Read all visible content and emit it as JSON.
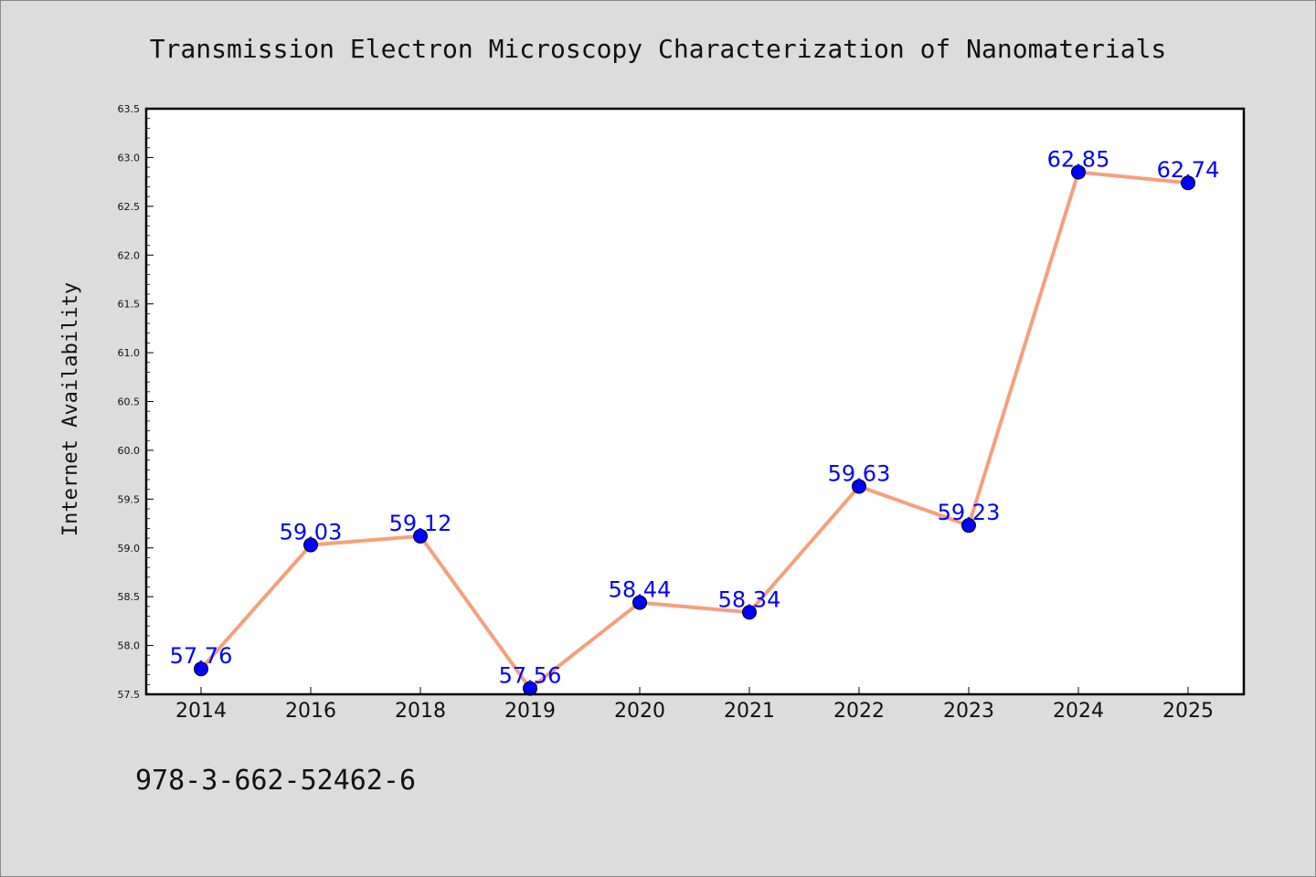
{
  "chart_data": {
    "type": "line",
    "title": "Transmission Electron Microscopy Characterization of Nanomaterials",
    "xlabel": "",
    "ylabel": "Internet Availability",
    "categories": [
      "2014",
      "2016",
      "2018",
      "2019",
      "2020",
      "2021",
      "2022",
      "2023",
      "2024",
      "2025"
    ],
    "series": [
      {
        "values": [
          57.76,
          59.03,
          59.12,
          57.56,
          58.44,
          58.34,
          59.63,
          59.23,
          62.85,
          62.74
        ],
        "data_labels": [
          "57.76",
          "59.03",
          "59.12",
          "57.56",
          "58.44",
          "58.34",
          "59.63",
          "59.23",
          "62.85",
          "62.74"
        ]
      }
    ],
    "ylim": [
      57.5,
      63.5
    ],
    "yticks": [
      "57.5",
      "58.0",
      "58.5",
      "59.0",
      "59.5",
      "60.0",
      "60.5",
      "61.0",
      "61.5",
      "62.0",
      "62.5",
      "63.0",
      "63.5"
    ],
    "grid": false,
    "legend": "none",
    "line_color": "#f4a07c",
    "marker_color": "#0000ff",
    "label_color": "#0000ff",
    "plot_background": "#ffffff",
    "figure_background": "#dcdcdc"
  },
  "footer": {
    "isbn": "978-3-662-52462-6"
  }
}
